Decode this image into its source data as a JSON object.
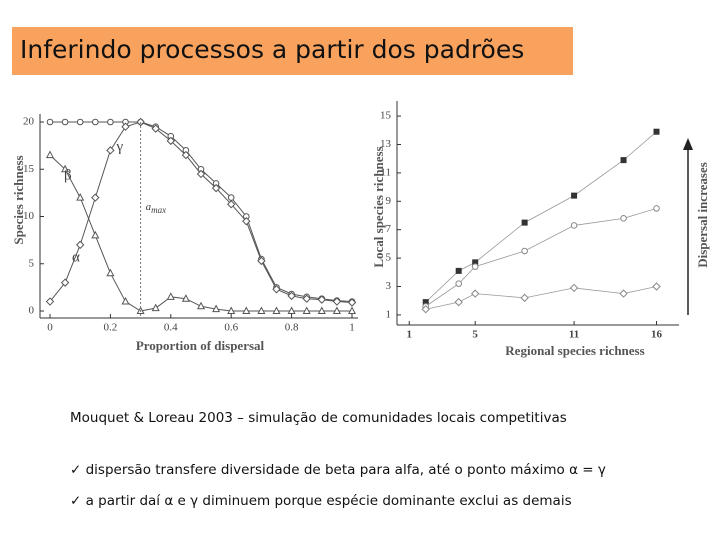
{
  "title": "Inferindo processos a partir dos padrões",
  "caption": "Mouquet & Loreau 2003 – simulação de comunidades locais competitivas",
  "bullets": [
    "dispersão transfere diversidade de beta para alfa, até o ponto máximo α = γ",
    "a partir daí α e γ diminuem porque espécie dominante exclui as demais"
  ],
  "chart_data": [
    {
      "type": "line",
      "x_label": "Proportion of dispersal",
      "y_label": "Species richness",
      "x": [
        0,
        0.05,
        0.1,
        0.15,
        0.2,
        0.25,
        0.3,
        0.35,
        0.4,
        0.45,
        0.5,
        0.55,
        0.6,
        0.65,
        0.7,
        0.75,
        0.8,
        0.85,
        0.9,
        0.95,
        1
      ],
      "series": [
        {
          "name": "γ",
          "color": "#555555",
          "marker": "circle",
          "values": [
            20,
            20,
            20,
            20,
            20,
            20,
            20,
            19.5,
            18.5,
            17,
            15,
            13.5,
            12,
            10,
            5.5,
            2.5,
            1.8,
            1.5,
            1.3,
            1.1,
            1
          ]
        },
        {
          "name": "β",
          "color": "#555555",
          "marker": "triangle",
          "values": [
            16.5,
            15,
            12,
            8,
            4,
            1,
            0,
            0.3,
            1.5,
            1.3,
            0.5,
            0.2,
            0,
            0,
            0,
            0,
            0,
            0,
            0,
            0,
            0
          ]
        },
        {
          "name": "α",
          "color": "#555555",
          "marker": "diamond",
          "values": [
            1,
            3,
            7,
            12,
            17,
            19.5,
            20,
            19.3,
            18,
            16.5,
            14.5,
            13,
            11.3,
            9.5,
            5.3,
            2.3,
            1.6,
            1.3,
            1.2,
            1,
            0.9
          ]
        }
      ],
      "annotation": "a",
      "annotation_sub": "max",
      "annotation_x": 0.3,
      "xlim": [
        0,
        1
      ],
      "xticks": [
        0,
        0.2,
        0.4,
        0.6,
        0.8,
        1
      ],
      "ylim": [
        0,
        20
      ],
      "yticks": [
        0,
        5,
        10,
        15,
        20
      ]
    },
    {
      "type": "scatter",
      "x_label": "Regional species richness",
      "y_label": "Local species richness",
      "arrow_label": "Dispersal increases",
      "series": [
        {
          "color": "#333333",
          "marker": "square",
          "x": [
            2,
            4,
            5,
            8,
            11,
            14,
            16
          ],
          "values": [
            1.9,
            4.1,
            4.7,
            7.5,
            9.4,
            11.9,
            13.9
          ]
        },
        {
          "color": "#888888",
          "marker": "circle",
          "x": [
            2,
            4,
            5,
            8,
            11,
            14,
            16
          ],
          "values": [
            1.6,
            3.2,
            4.4,
            5.5,
            7.3,
            7.8,
            8.5
          ]
        },
        {
          "color": "#888888",
          "marker": "diamond",
          "x": [
            2,
            4,
            5,
            8,
            11,
            14,
            16
          ],
          "values": [
            1.4,
            1.9,
            2.5,
            2.2,
            2.9,
            2.5,
            3
          ]
        }
      ],
      "xlim": [
        0.5,
        17
      ],
      "xticks": [
        1,
        5,
        11,
        16
      ],
      "ylim": [
        0.5,
        15.5
      ],
      "yticks": [
        1,
        3,
        5,
        7,
        9,
        11,
        13,
        15
      ]
    }
  ]
}
